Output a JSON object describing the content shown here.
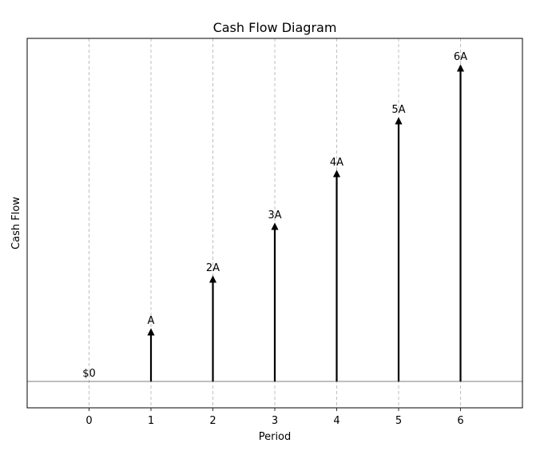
{
  "chart_data": {
    "type": "bar",
    "title": "Cash Flow Diagram",
    "xlabel": "Period",
    "ylabel": "Cash Flow",
    "x": [
      0,
      1,
      2,
      3,
      4,
      5,
      6
    ],
    "values": [
      0,
      1,
      2,
      3,
      4,
      5,
      6
    ],
    "labels": [
      "$0",
      "A",
      "2A",
      "3A",
      "4A",
      "5A",
      "6A"
    ],
    "xlim": [
      -1,
      7
    ],
    "ylim": [
      -0.5,
      6.5
    ],
    "grid": "vertical-dashed",
    "baseline": 0,
    "colors": {
      "arrow": "#000000",
      "grid": "#b0b0b0",
      "baseline": "#555555",
      "frame": "#000000"
    }
  }
}
